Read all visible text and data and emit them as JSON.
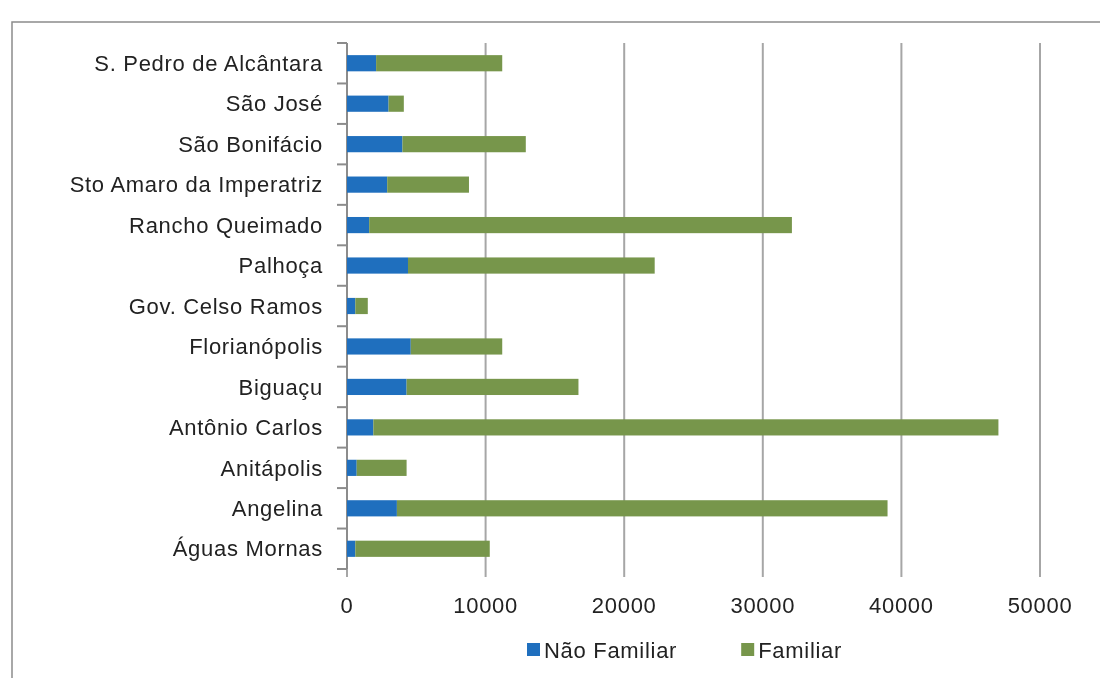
{
  "chart_data": {
    "type": "bar",
    "orientation": "horizontal",
    "stacked": true,
    "categories": [
      "S. Pedro de Alcântara",
      "São José",
      "São Bonifácio",
      "Sto Amaro da Imperatriz",
      "Rancho Queimado",
      "Palhoça",
      "Gov. Celso Ramos",
      "Florianópolis",
      "Biguaçu",
      "Antônio Carlos",
      "Anitápolis",
      "Angelina",
      "Águas Mornas"
    ],
    "series": [
      {
        "name": "Não Familiar",
        "color": "#1f6fbe",
        "values": [
          2100,
          3000,
          4000,
          2900,
          1600,
          4400,
          600,
          4600,
          4300,
          1900,
          700,
          3600,
          600
        ]
      },
      {
        "name": "Familiar",
        "color": "#77964b",
        "values": [
          9100,
          1100,
          8900,
          5900,
          30500,
          17800,
          900,
          6600,
          12400,
          45100,
          3600,
          35400,
          9700
        ]
      }
    ],
    "xlim": [
      0,
      50000
    ],
    "xticks": [
      0,
      10000,
      20000,
      30000,
      40000,
      50000
    ],
    "grid": "x",
    "legend": "bottom"
  }
}
